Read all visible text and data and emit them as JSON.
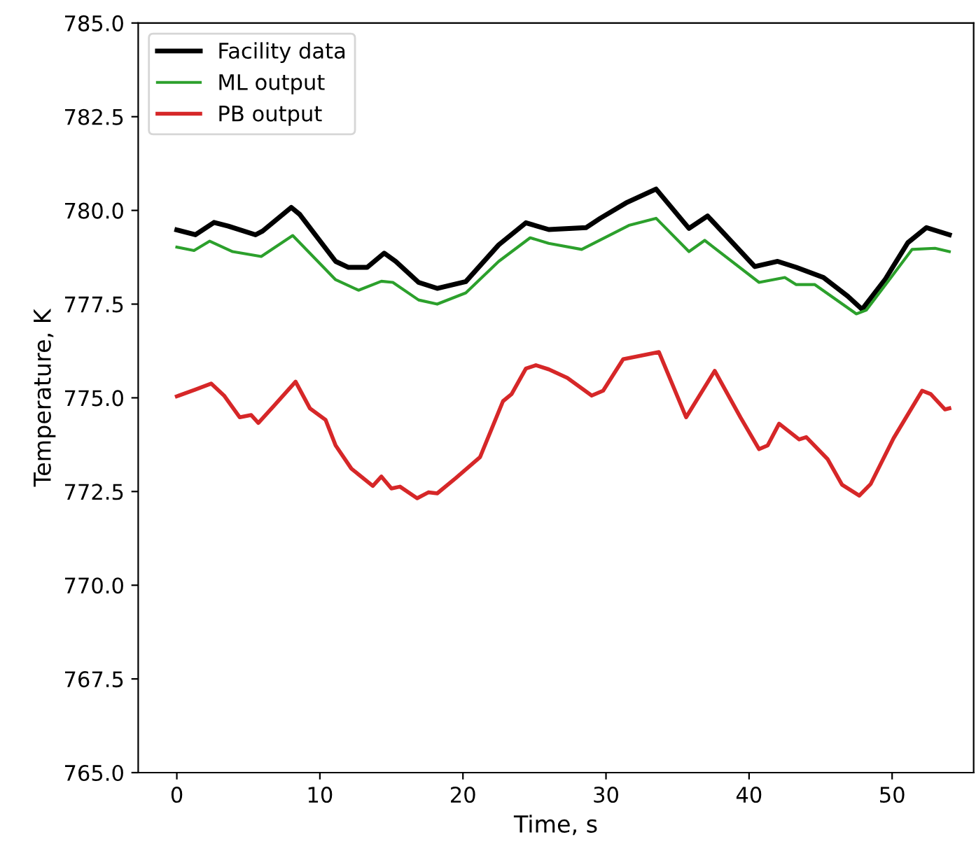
{
  "chart_data": {
    "type": "line",
    "xlabel": "Time, s",
    "ylabel": "Temperature, K",
    "xlim": [
      -2.7,
      55.7
    ],
    "xticks": [
      0,
      10,
      20,
      30,
      40,
      50
    ],
    "ylim": [
      765.0,
      785.0
    ],
    "yticks": [
      {
        "value": 765,
        "label": "765.0"
      },
      {
        "value": 767.5,
        "label": "767.5"
      },
      {
        "value": 770,
        "label": "770.0"
      },
      {
        "value": 772.5,
        "label": "772.5"
      },
      {
        "value": 775,
        "label": "775.0"
      },
      {
        "value": 777.5,
        "label": "777.5"
      },
      {
        "value": 780,
        "label": "780.0"
      },
      {
        "value": 782.5,
        "label": "782.5"
      },
      {
        "value": 785,
        "label": "785.0"
      }
    ],
    "legend": "top left",
    "grid": false,
    "marker": "none",
    "line_style": "solid",
    "series": [
      {
        "name": "Facility data",
        "color": "#000000",
        "x": [
          0,
          1.3,
          2.6,
          3.6,
          5.5,
          6.0,
          8.0,
          8.6,
          11.1,
          12.0,
          13.3,
          14.5,
          15.3,
          16.9,
          18.2,
          20.2,
          22.5,
          24.4,
          26.0,
          28.6,
          29.6,
          31.4,
          33.5,
          35.8,
          37.1,
          40.4,
          42.0,
          43.3,
          45.2,
          46.9,
          47.9,
          49.5,
          51.1,
          52.4,
          54.0
        ],
        "values": [
          779.48,
          779.35,
          779.68,
          779.58,
          779.35,
          779.45,
          780.08,
          779.89,
          778.64,
          778.48,
          778.48,
          778.86,
          778.64,
          778.08,
          777.92,
          778.1,
          779.08,
          779.67,
          779.49,
          779.54,
          779.79,
          780.2,
          780.57,
          779.52,
          779.85,
          778.5,
          778.64,
          778.48,
          778.21,
          777.71,
          777.36,
          778.15,
          779.14,
          779.54,
          779.35
        ]
      },
      {
        "name": "ML output",
        "color": "#2ca02c",
        "x": [
          0,
          1.2,
          2.3,
          3.9,
          5.9,
          8.1,
          11.1,
          12.7,
          14.3,
          15.1,
          16.9,
          18.2,
          20.2,
          22.5,
          24.7,
          26.0,
          28.3,
          31.6,
          33.5,
          35.8,
          36.9,
          40.7,
          42.5,
          43.3,
          44.6,
          47.5,
          48.2,
          49.8,
          51.4,
          53.0,
          54.0
        ],
        "values": [
          779.02,
          778.93,
          779.18,
          778.9,
          778.77,
          779.33,
          778.15,
          777.87,
          778.11,
          778.08,
          777.61,
          777.5,
          777.8,
          778.64,
          779.27,
          779.12,
          778.96,
          779.6,
          779.79,
          778.9,
          779.2,
          778.08,
          778.21,
          778.02,
          778.02,
          777.24,
          777.34,
          778.15,
          778.96,
          778.99,
          778.9
        ]
      },
      {
        "name": "PB output",
        "color": "#d62728",
        "x": [
          0,
          1.3,
          2.4,
          3.3,
          4.4,
          5.2,
          5.7,
          6.8,
          8.3,
          9.3,
          10.4,
          11.1,
          12.2,
          13.7,
          14.3,
          15.0,
          15.6,
          16.8,
          17.6,
          18.2,
          19.5,
          21.2,
          22.8,
          23.4,
          24.4,
          25.1,
          26.0,
          27.3,
          29.0,
          29.8,
          31.2,
          33.7,
          35.6,
          37.6,
          39.4,
          40.7,
          41.3,
          42.1,
          43.5,
          44.0,
          45.5,
          46.5,
          47.7,
          48.5,
          50.1,
          52.1,
          52.7,
          53.7,
          54.0
        ],
        "values": [
          775.04,
          775.22,
          775.38,
          775.06,
          774.48,
          774.54,
          774.33,
          774.79,
          775.43,
          774.72,
          774.41,
          773.73,
          773.11,
          772.65,
          772.9,
          772.58,
          772.63,
          772.32,
          772.48,
          772.45,
          772.86,
          773.42,
          774.91,
          775.1,
          775.78,
          775.87,
          775.76,
          775.53,
          775.06,
          775.19,
          776.03,
          776.22,
          774.48,
          775.72,
          774.48,
          773.63,
          773.73,
          774.31,
          773.89,
          773.95,
          773.36,
          772.68,
          772.39,
          772.7,
          773.92,
          775.19,
          775.1,
          774.69,
          774.72
        ]
      }
    ]
  }
}
